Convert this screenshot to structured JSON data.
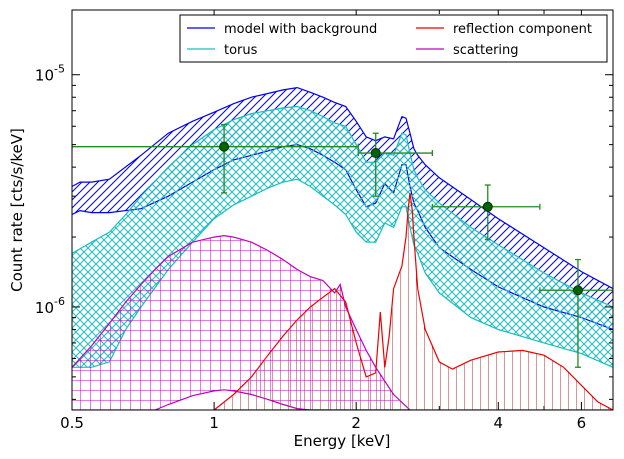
{
  "chart_data": {
    "type": "line",
    "xlabel": "Energy [keV]",
    "ylabel": "Count rate [cts/s/keV]",
    "xscale": "log",
    "yscale": "log",
    "xlim": [
      0.5,
      7.0
    ],
    "ylim": [
      3.6e-07,
      1.9e-05
    ],
    "x_ticks": [
      {
        "value": 0.5,
        "label": "0.5"
      },
      {
        "value": 1,
        "label": "1"
      },
      {
        "value": 2,
        "label": "2"
      },
      {
        "value": 4,
        "label": "4"
      },
      {
        "value": 6,
        "label": "6"
      }
    ],
    "y_ticks": [
      {
        "value": 1e-06,
        "base": "10",
        "exp": "-6"
      },
      {
        "value": 1e-05,
        "base": "10",
        "exp": "-5"
      }
    ],
    "legend": {
      "position": "top-right",
      "entries": [
        {
          "label": "model with background",
          "color": "#0000ee"
        },
        {
          "label": "reflection component",
          "color": "#ee0000"
        },
        {
          "label": "torus",
          "color": "#1cbdbd"
        },
        {
          "label": "scattering",
          "color": "#c000c0"
        }
      ]
    },
    "colors": {
      "model": "#0000ee",
      "torus": "#1cbdbd",
      "reflection": "#ee0000",
      "scattering": "#c000c0",
      "data": "#228b22",
      "data_marker": "#006400"
    },
    "data_points": [
      {
        "x": 1.05,
        "y": 4.9e-06,
        "xerr": [
          0.5,
          2.02
        ],
        "yerr": [
          3.1e-06,
          6.1e-06
        ]
      },
      {
        "x": 2.2,
        "y": 4.6e-06,
        "xerr": [
          2.02,
          2.9
        ],
        "yerr": [
          3e-06,
          5.6e-06
        ]
      },
      {
        "x": 3.8,
        "y": 2.7e-06,
        "xerr": [
          2.9,
          4.9
        ],
        "yerr": [
          1.95e-06,
          3.35e-06
        ]
      },
      {
        "x": 5.9,
        "y": 1.18e-06,
        "xerr": [
          4.9,
          7.0
        ],
        "yerr": [
          5.5e-07,
          1.6e-06
        ]
      }
    ],
    "series": [
      {
        "name": "model with background",
        "kind": "band",
        "x": [
          0.5,
          0.52,
          0.55,
          0.6,
          0.7,
          0.8,
          0.9,
          1.0,
          1.1,
          1.2,
          1.3,
          1.4,
          1.5,
          1.6,
          1.7,
          1.8,
          1.9,
          2.0,
          2.1,
          2.2,
          2.3,
          2.4,
          2.5,
          2.55,
          2.6,
          2.65,
          2.7,
          2.8,
          3.0,
          3.5,
          4.0,
          5.0,
          6.0,
          7.0
        ],
        "upper": [
          3.3e-06,
          3.45e-06,
          3.45e-06,
          3.55e-06,
          4.5e-06,
          5.6e-06,
          6.3e-06,
          6.9e-06,
          7.5e-06,
          8e-06,
          8.3e-06,
          8.6e-06,
          8.8e-06,
          8.4e-06,
          8e-06,
          7.6e-06,
          7.3e-06,
          6.3e-06,
          5.4e-06,
          5.2e-06,
          5.4e-06,
          5.3e-06,
          6.6e-06,
          6.5e-06,
          5.6e-06,
          4.8e-06,
          4.5e-06,
          4.1e-06,
          3.6e-06,
          2.9e-06,
          2.4e-06,
          1.8e-06,
          1.42e-06,
          1.2e-06
        ],
        "lower": [
          2.5e-06,
          2.6e-06,
          2.55e-06,
          2.55e-06,
          2.65e-06,
          3e-06,
          3.45e-06,
          3.9e-06,
          4.3e-06,
          4.5e-06,
          4.7e-06,
          4.9e-06,
          5e-06,
          4.8e-06,
          4.5e-06,
          4.2e-06,
          3.9e-06,
          3.2e-06,
          2.7e-06,
          2.8e-06,
          3.4e-06,
          3.1e-06,
          4.1e-06,
          4.1e-06,
          3.3e-06,
          2.8e-06,
          2.6e-06,
          2.2e-06,
          1.8e-06,
          1.45e-06,
          1.22e-06,
          1e-06,
          9e-07,
          8e-07
        ]
      },
      {
        "name": "torus",
        "kind": "band",
        "x": [
          0.5,
          0.55,
          0.6,
          0.65,
          0.7,
          0.8,
          0.9,
          1.0,
          1.1,
          1.2,
          1.3,
          1.4,
          1.5,
          1.6,
          1.7,
          1.8,
          1.9,
          2.0,
          2.1,
          2.2,
          2.3,
          2.4,
          2.5,
          2.55,
          2.6,
          2.65,
          2.7,
          2.8,
          3.0,
          3.5,
          4.0,
          5.0,
          6.0,
          7.0
        ],
        "upper": [
          1.7e-06,
          1.9e-06,
          2.1e-06,
          2.5e-06,
          3e-06,
          4e-06,
          5e-06,
          5.8e-06,
          6.4e-06,
          6.8e-06,
          7e-06,
          7.2e-06,
          7.3e-06,
          7e-06,
          6.6e-06,
          6.2e-06,
          6e-06,
          5e-06,
          4.2e-06,
          4.2e-06,
          4.6e-06,
          4.5e-06,
          5.6e-06,
          5.5e-06,
          4.6e-06,
          3.9e-06,
          3.6e-06,
          3.2e-06,
          2.8e-06,
          2.2e-06,
          1.85e-06,
          1.4e-06,
          1.15e-06,
          1e-06
        ],
        "lower": [
          5.5e-07,
          5.5e-07,
          5.8e-07,
          8e-07,
          1e-06,
          1.45e-06,
          1.9e-06,
          2.4e-06,
          2.75e-06,
          3e-06,
          3.25e-06,
          3.45e-06,
          3.55e-06,
          3.3e-06,
          3e-06,
          2.75e-06,
          2.5e-06,
          2.1e-06,
          1.9e-06,
          1.9e-06,
          2.3e-06,
          2.2e-06,
          2.7e-06,
          2.7e-06,
          2.2e-06,
          1.85e-06,
          1.7e-06,
          1.4e-06,
          1.15e-06,
          9e-07,
          8e-07,
          7e-07,
          6.3e-07,
          5.5e-07
        ]
      },
      {
        "name": "scattering",
        "kind": "band",
        "x": [
          0.5,
          0.55,
          0.6,
          0.65,
          0.7,
          0.75,
          0.8,
          0.9,
          1.0,
          1.05,
          1.1,
          1.2,
          1.3,
          1.4,
          1.5,
          1.6,
          1.7,
          1.8,
          1.85,
          1.9,
          2.0,
          2.1,
          2.2,
          2.4,
          2.6
        ],
        "upper": [
          5.5e-07,
          6.8e-07,
          8.5e-07,
          1.05e-06,
          1.25e-06,
          1.45e-06,
          1.65e-06,
          1.9e-06,
          2e-06,
          2.03e-06,
          2e-06,
          1.9e-06,
          1.75e-06,
          1.6e-06,
          1.45e-06,
          1.35e-06,
          1.3e-06,
          1.15e-06,
          1.25e-06,
          1e-06,
          8e-07,
          6.5e-07,
          5.5e-07,
          4.2e-07,
          3.6e-07
        ],
        "lower": [
          3.6e-07,
          3.6e-07,
          3.6e-07,
          3.6e-07,
          3.6e-07,
          3.6e-07,
          3.8e-07,
          4.15e-07,
          4.35e-07,
          4.4e-07,
          4.35e-07,
          4.2e-07,
          4e-07,
          3.8e-07,
          3.65e-07,
          3.6e-07,
          3.6e-07,
          3.6e-07,
          3.6e-07,
          3.6e-07,
          3.6e-07,
          3.6e-07,
          3.6e-07,
          3.6e-07,
          3.6e-07
        ]
      },
      {
        "name": "reflection component",
        "kind": "band",
        "x": [
          1.0,
          1.1,
          1.2,
          1.3,
          1.4,
          1.5,
          1.6,
          1.7,
          1.8,
          1.9,
          2.0,
          2.1,
          2.2,
          2.25,
          2.3,
          2.35,
          2.4,
          2.5,
          2.55,
          2.58,
          2.6,
          2.63,
          2.65,
          2.7,
          2.8,
          3.0,
          3.2,
          3.5,
          4.0,
          4.5,
          5.0,
          5.5,
          6.0,
          6.5,
          7.0
        ],
        "upper": [
          3.6e-07,
          4.2e-07,
          5e-07,
          6.2e-07,
          7.5e-07,
          8.8e-07,
          1e-06,
          1.1e-06,
          1.2e-06,
          1.05e-06,
          7e-07,
          5e-07,
          5.2e-07,
          9.5e-07,
          5.5e-07,
          7.5e-07,
          1.2e-06,
          1.5e-06,
          2e-06,
          2.7e-06,
          3.1e-06,
          2.6e-06,
          2e-06,
          1.2e-06,
          8e-07,
          5.8e-07,
          5.4e-07,
          5.9e-07,
          6.4e-07,
          6.5e-07,
          6.2e-07,
          5.5e-07,
          4.6e-07,
          3.9e-07,
          3.6e-07
        ],
        "lower": [
          3.6e-07,
          3.6e-07,
          3.6e-07,
          3.6e-07,
          3.6e-07,
          3.6e-07,
          3.6e-07,
          3.6e-07,
          3.6e-07,
          3.6e-07,
          3.6e-07,
          3.6e-07,
          3.6e-07,
          3.6e-07,
          3.6e-07,
          3.6e-07,
          3.6e-07,
          3.6e-07,
          3.6e-07,
          3.6e-07,
          3.6e-07,
          3.6e-07,
          3.6e-07,
          3.6e-07,
          3.6e-07,
          3.6e-07,
          3.6e-07,
          3.6e-07,
          3.6e-07,
          3.6e-07,
          3.6e-07,
          3.6e-07,
          3.6e-07,
          3.6e-07,
          3.6e-07
        ]
      }
    ]
  }
}
